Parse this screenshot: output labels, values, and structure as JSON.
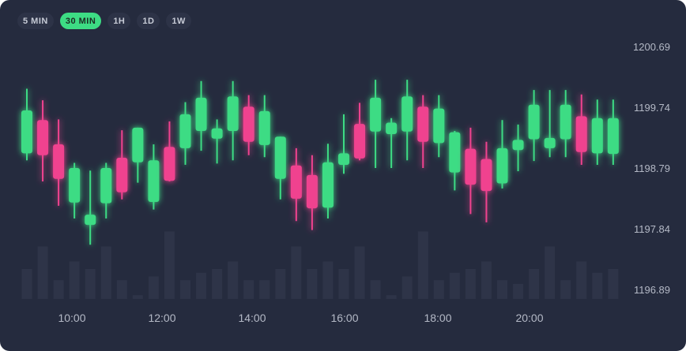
{
  "timeframes": [
    {
      "label": "5 MIN",
      "active": false
    },
    {
      "label": "30 MIN",
      "active": true
    },
    {
      "label": "1H",
      "active": false
    },
    {
      "label": "1D",
      "active": false
    },
    {
      "label": "1W",
      "active": false
    }
  ],
  "colors": {
    "up": "#3ddc84",
    "down": "#f0428f",
    "volume": "#2e3448",
    "background": "#252b3e"
  },
  "chart_data": {
    "type": "candlestick",
    "ylim": [
      1196.89,
      1200.69
    ],
    "y_ticks": [
      "1200.69",
      "1199.74",
      "1198.79",
      "1197.84",
      "1196.89"
    ],
    "x_ticks": [
      {
        "index": 3,
        "label": "10:00"
      },
      {
        "index": 9,
        "label": "12:00"
      },
      {
        "index": 15,
        "label": "14:00"
      },
      {
        "index": 21,
        "label": "16:00"
      },
      {
        "index": 27,
        "label": "18:00"
      },
      {
        "index": 33,
        "label": "20:00"
      }
    ],
    "volume_scale": 10,
    "candles": [
      {
        "o": 1199.02,
        "h": 1200.03,
        "l": 1198.91,
        "c": 1199.69,
        "v": 4
      },
      {
        "o": 1199.54,
        "h": 1199.85,
        "l": 1198.58,
        "c": 1198.99,
        "v": 7
      },
      {
        "o": 1199.16,
        "h": 1199.55,
        "l": 1198.2,
        "c": 1198.62,
        "v": 2.5
      },
      {
        "o": 1198.25,
        "h": 1198.87,
        "l": 1198.0,
        "c": 1198.79,
        "v": 5
      },
      {
        "o": 1197.9,
        "h": 1198.75,
        "l": 1197.59,
        "c": 1198.06,
        "v": 4
      },
      {
        "o": 1198.24,
        "h": 1198.87,
        "l": 1198.0,
        "c": 1198.79,
        "v": 7
      },
      {
        "o": 1198.95,
        "h": 1199.38,
        "l": 1198.3,
        "c": 1198.41,
        "v": 2.5
      },
      {
        "o": 1198.88,
        "h": 1199.42,
        "l": 1198.56,
        "c": 1199.42,
        "v": 0.5
      },
      {
        "o": 1198.26,
        "h": 1199.16,
        "l": 1198.14,
        "c": 1198.91,
        "v": 3
      },
      {
        "o": 1199.12,
        "h": 1199.52,
        "l": 1198.58,
        "c": 1198.59,
        "v": 9
      },
      {
        "o": 1199.1,
        "h": 1199.82,
        "l": 1198.84,
        "c": 1199.63,
        "v": 2.5
      },
      {
        "o": 1199.37,
        "h": 1200.15,
        "l": 1199.06,
        "c": 1199.89,
        "v": 3.5
      },
      {
        "o": 1199.25,
        "h": 1199.55,
        "l": 1198.86,
        "c": 1199.41,
        "v": 4
      },
      {
        "o": 1199.37,
        "h": 1200.15,
        "l": 1198.91,
        "c": 1199.91,
        "v": 5
      },
      {
        "o": 1199.75,
        "h": 1199.93,
        "l": 1198.99,
        "c": 1199.2,
        "v": 2.5
      },
      {
        "o": 1199.15,
        "h": 1199.93,
        "l": 1198.96,
        "c": 1199.68,
        "v": 2.5
      },
      {
        "o": 1198.62,
        "h": 1199.28,
        "l": 1198.3,
        "c": 1199.28,
        "v": 4
      },
      {
        "o": 1198.83,
        "h": 1199.1,
        "l": 1197.96,
        "c": 1198.31,
        "v": 7
      },
      {
        "o": 1198.68,
        "h": 1198.99,
        "l": 1197.82,
        "c": 1198.16,
        "v": 4
      },
      {
        "o": 1198.17,
        "h": 1199.17,
        "l": 1198.0,
        "c": 1198.88,
        "v": 5
      },
      {
        "o": 1198.84,
        "h": 1199.63,
        "l": 1198.7,
        "c": 1199.02,
        "v": 4
      },
      {
        "o": 1199.48,
        "h": 1199.81,
        "l": 1198.91,
        "c": 1198.94,
        "v": 7
      },
      {
        "o": 1199.36,
        "h": 1200.17,
        "l": 1198.79,
        "c": 1199.89,
        "v": 2.5
      },
      {
        "o": 1199.32,
        "h": 1199.57,
        "l": 1198.79,
        "c": 1199.5,
        "v": 0.5
      },
      {
        "o": 1199.36,
        "h": 1200.17,
        "l": 1198.91,
        "c": 1199.91,
        "v": 3
      },
      {
        "o": 1199.75,
        "h": 1199.93,
        "l": 1198.79,
        "c": 1199.2,
        "v": 9
      },
      {
        "o": 1199.18,
        "h": 1199.93,
        "l": 1198.96,
        "c": 1199.72,
        "v": 2.5
      },
      {
        "o": 1198.72,
        "h": 1199.37,
        "l": 1198.44,
        "c": 1199.35,
        "v": 3.5
      },
      {
        "o": 1199.09,
        "h": 1199.42,
        "l": 1198.07,
        "c": 1198.53,
        "v": 4
      },
      {
        "o": 1198.93,
        "h": 1199.2,
        "l": 1197.94,
        "c": 1198.43,
        "v": 5
      },
      {
        "o": 1198.55,
        "h": 1199.54,
        "l": 1198.47,
        "c": 1199.1,
        "v": 2.5
      },
      {
        "o": 1199.07,
        "h": 1199.47,
        "l": 1198.74,
        "c": 1199.23,
        "v": 2
      },
      {
        "o": 1199.24,
        "h": 1200.01,
        "l": 1198.9,
        "c": 1199.78,
        "v": 4
      },
      {
        "o": 1199.1,
        "h": 1200.01,
        "l": 1198.96,
        "c": 1199.26,
        "v": 7
      },
      {
        "o": 1199.24,
        "h": 1200.01,
        "l": 1198.96,
        "c": 1199.78,
        "v": 2.5
      },
      {
        "o": 1199.6,
        "h": 1199.94,
        "l": 1198.84,
        "c": 1199.04,
        "v": 5
      },
      {
        "o": 1199.02,
        "h": 1199.86,
        "l": 1198.84,
        "c": 1199.57,
        "v": 3.5
      },
      {
        "o": 1199.01,
        "h": 1199.86,
        "l": 1198.84,
        "c": 1199.57,
        "v": 4
      }
    ]
  }
}
